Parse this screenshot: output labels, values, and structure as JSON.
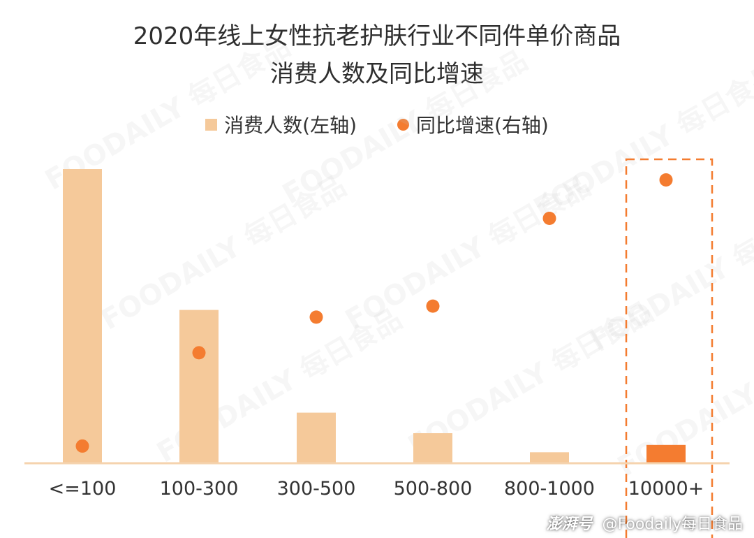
{
  "chart_data": {
    "type": "bar+scatter",
    "title": "2020年线上女性抗老护肤行业不同件单价商品",
    "subtitle": "消费人数及同比增速",
    "legend": [
      "消费人数(左轴)",
      "同比增速(右轴)"
    ],
    "categories": [
      "<=100",
      "100-300",
      "300-500",
      "500-800",
      "800-1000",
      "10000+"
    ],
    "series": [
      {
        "name": "消费人数(左轴)",
        "axis": "left",
        "type": "bar",
        "values": [
          100,
          52,
          17,
          10,
          3.5,
          6
        ]
      },
      {
        "name": "同比增速(右轴)",
        "axis": "right",
        "type": "scatter",
        "values": [
          6,
          40,
          53,
          57,
          89,
          103
        ]
      }
    ],
    "ylim_left": [
      0,
      100
    ],
    "ylim_right": [
      0,
      110
    ],
    "highlight_category": "10000+",
    "colors": {
      "bar": "#F5C99A",
      "bar_highlight": "#F47C30",
      "dot": "#F47C30",
      "axis": "#F5D3AE",
      "highlight_box": "#F47C30"
    }
  },
  "watermark_text": "FOODAILY 每日食品",
  "footer": {
    "platform": "澎湃号",
    "account": "@Foodaily每日食品"
  }
}
